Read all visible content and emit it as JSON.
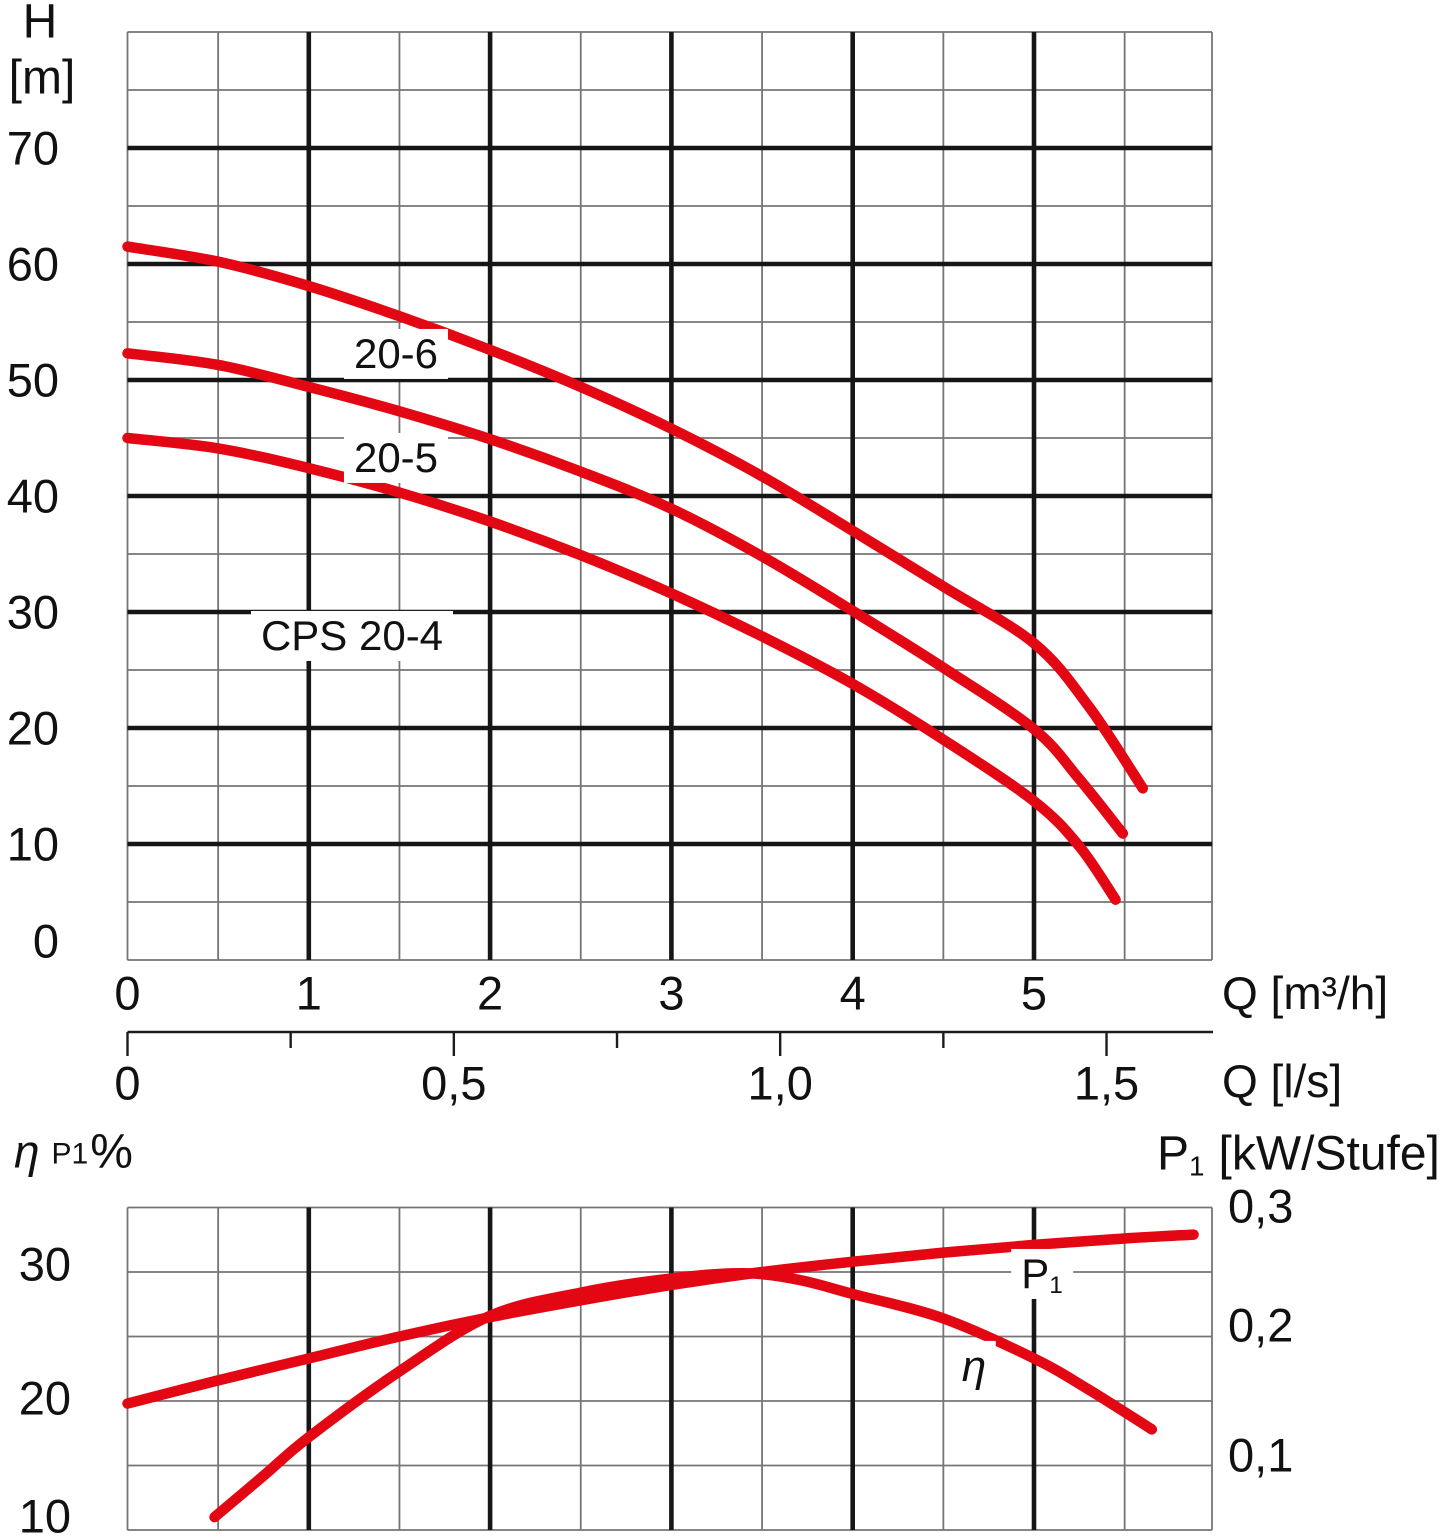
{
  "colors": {
    "curve": "#e30613",
    "grid_thin": "#757575",
    "grid_thick": "#161616",
    "ruler": "#1c1c1c",
    "text": "#111111",
    "background": "#ffffff"
  },
  "labels": {
    "h_title": "H",
    "h_unit": "[m]",
    "q_m3h": "Q [m³/h]",
    "q_ls": "Q [l/s]",
    "eta_sym": "η",
    "p1_small": "P1",
    "percent": "%",
    "p_letter": "P",
    "p_sub": "1",
    "p_unit": "[kW/Stufe]",
    "curve_20_6": "20-6",
    "curve_20_5": "20-5",
    "curve_20_4": "CPS 20-4",
    "p1_curve": "P",
    "p1_curve_sub": "1",
    "eta_curve": "η"
  },
  "axis_ticks": {
    "top_y_labels": [
      "70",
      "60",
      "50",
      "40",
      "30",
      "20",
      "10",
      "0"
    ],
    "top_y_values": [
      70,
      60,
      50,
      40,
      30,
      20,
      10,
      0
    ],
    "top_x_labels": [
      "0",
      "1",
      "2",
      "3",
      "4",
      "5"
    ],
    "top_x_values": [
      0,
      1,
      2,
      3,
      4,
      5
    ],
    "ls_labels": [
      "0",
      "0,5",
      "1,0",
      "1,5"
    ],
    "ls_values": [
      0,
      0.5,
      1,
      1.5
    ],
    "ls_minor_values": [
      0.25,
      0.75,
      1.25
    ],
    "bottom_left_labels": [
      "30",
      "20",
      "10"
    ],
    "bottom_left_values": [
      30,
      20,
      10
    ],
    "bottom_right_labels": [
      "0,3",
      "0,2",
      "0,1"
    ],
    "bottom_right_values": [
      0.3,
      0.2,
      0.1
    ]
  },
  "chart_data": [
    {
      "type": "line",
      "xlabel": "Q [m³/h]",
      "x2label": "Q [l/s]",
      "ylabel": "H [m]",
      "xlim": [
        0,
        5.98
      ],
      "ylim": [
        0,
        80
      ],
      "x_ticks": [
        0,
        1,
        2,
        3,
        4,
        5
      ],
      "x2_ticks": [
        0,
        0.5,
        1.0,
        1.5
      ],
      "y_ticks": [
        0,
        10,
        20,
        30,
        40,
        50,
        60,
        70
      ],
      "grid": true,
      "legend_position": "inline-labels",
      "series": [
        {
          "name": "20-6",
          "color": "#e30613",
          "points": [
            [
              0,
              61.5
            ],
            [
              0.5,
              60.2
            ],
            [
              1,
              58.1
            ],
            [
              1.5,
              55.5
            ],
            [
              2,
              52.6
            ],
            [
              2.5,
              49.4
            ],
            [
              3,
              45.8
            ],
            [
              3.5,
              41.7
            ],
            [
              4,
              37.0
            ],
            [
              4.5,
              32.2
            ],
            [
              5,
              27.3
            ],
            [
              5.3,
              21.9
            ],
            [
              5.6,
              14.8
            ]
          ]
        },
        {
          "name": "20-5",
          "color": "#e30613",
          "points": [
            [
              0,
              52.3
            ],
            [
              0.5,
              51.3
            ],
            [
              1,
              49.4
            ],
            [
              1.5,
              47.3
            ],
            [
              2,
              44.9
            ],
            [
              2.5,
              42.1
            ],
            [
              3,
              38.9
            ],
            [
              3.5,
              34.8
            ],
            [
              4,
              30.1
            ],
            [
              4.5,
              25.2
            ],
            [
              5,
              19.9
            ],
            [
              5.25,
              15.6
            ],
            [
              5.49,
              10.9
            ]
          ]
        },
        {
          "name": "CPS 20-4",
          "color": "#e30613",
          "points": [
            [
              0,
              45.0
            ],
            [
              0.5,
              44.1
            ],
            [
              1,
              42.4
            ],
            [
              1.5,
              40.3
            ],
            [
              2,
              37.8
            ],
            [
              2.5,
              34.9
            ],
            [
              3,
              31.6
            ],
            [
              3.5,
              27.9
            ],
            [
              4,
              23.8
            ],
            [
              4.5,
              19.0
            ],
            [
              5,
              13.7
            ],
            [
              5.25,
              9.8
            ],
            [
              5.45,
              5.2
            ]
          ]
        }
      ]
    },
    {
      "type": "line",
      "xlabel": "Q [m³/h]",
      "ylabel_left": "η P1 %",
      "ylabel_right": "P1 [kW/Stufe]",
      "xlim": [
        0,
        5.98
      ],
      "ylim_left": [
        8.5,
        35
      ],
      "ylim_right": [
        0.05,
        0.3
      ],
      "left_ticks": [
        10,
        20,
        30
      ],
      "right_ticks": [
        0.1,
        0.2,
        0.3
      ],
      "grid": true,
      "series": [
        {
          "name": "P1",
          "axis": "right",
          "color": "#e30613",
          "points": [
            [
              0,
              0.148
            ],
            [
              0.5,
              0.166
            ],
            [
              1,
              0.183
            ],
            [
              1.5,
              0.2
            ],
            [
              2,
              0.215
            ],
            [
              2.5,
              0.228
            ],
            [
              3,
              0.24
            ],
            [
              3.5,
              0.25
            ],
            [
              4,
              0.258
            ],
            [
              4.5,
              0.265
            ],
            [
              5,
              0.271
            ],
            [
              5.5,
              0.276
            ],
            [
              5.88,
              0.279
            ]
          ]
        },
        {
          "name": "η",
          "axis": "left",
          "color": "#e30613",
          "points": [
            [
              0.48,
              11.0
            ],
            [
              0.75,
              14.2
            ],
            [
              1,
              17.2
            ],
            [
              1.5,
              22.3
            ],
            [
              2,
              26.6
            ],
            [
              2.5,
              28.4
            ],
            [
              3,
              29.5
            ],
            [
              3.4,
              29.9
            ],
            [
              3.7,
              29.4
            ],
            [
              4,
              28.3
            ],
            [
              4.5,
              26.4
            ],
            [
              5,
              23.3
            ],
            [
              5.3,
              20.9
            ],
            [
              5.65,
              17.8
            ]
          ]
        }
      ]
    }
  ]
}
